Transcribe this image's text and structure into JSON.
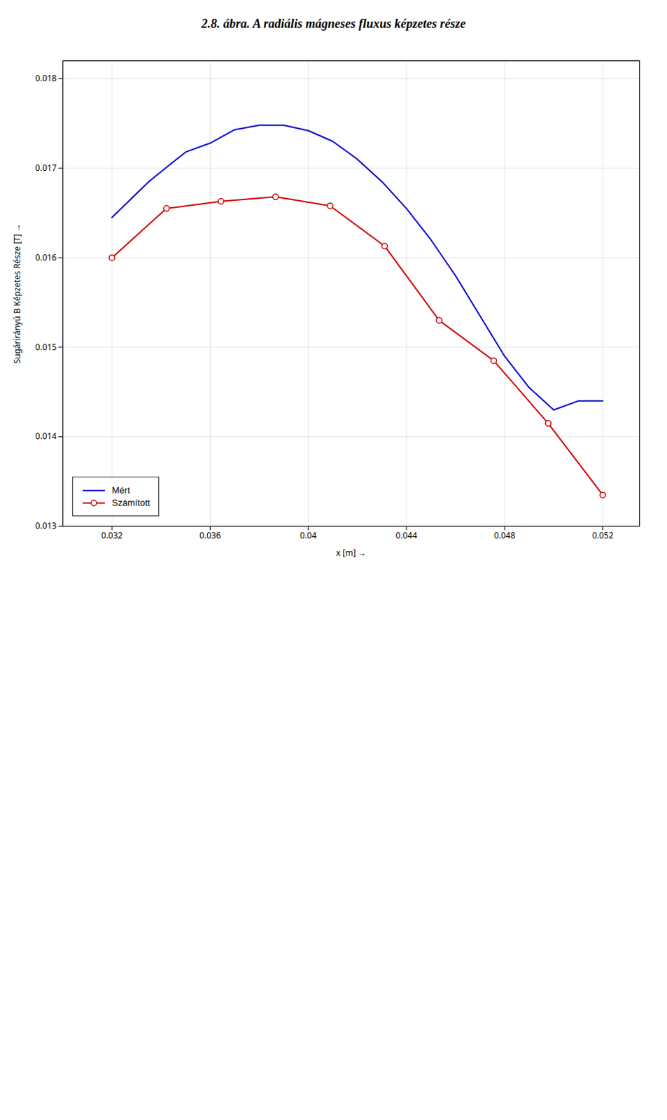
{
  "chart_data": {
    "type": "line",
    "title": "2.8. ábra. A radiális mágneses fluxus képzetes része",
    "xlabel": "x [m]",
    "ylabel": "Sugárirányú B Képzetes Része [T]",
    "xlim": [
      0.03,
      0.0535
    ],
    "ylim": [
      0.013,
      0.0182
    ],
    "xticks": [
      0.032,
      0.036,
      0.04,
      0.044,
      0.048,
      0.052
    ],
    "yticks": [
      0.013,
      0.014,
      0.015,
      0.016,
      0.017,
      0.018
    ],
    "grid": true,
    "legend": "lower left",
    "series": [
      {
        "name": "Mért",
        "color": "#0000cc",
        "line_style": "solid",
        "x": [
          0.032,
          0.0335,
          0.035,
          0.036,
          0.037,
          0.038,
          0.039,
          0.04,
          0.041,
          0.042,
          0.043,
          0.044,
          0.045,
          0.046,
          0.047,
          0.048,
          0.049,
          0.05,
          0.051,
          0.052
        ],
        "values": [
          0.01645,
          0.01685,
          0.01718,
          0.01728,
          0.01743,
          0.01748,
          0.01748,
          0.01742,
          0.0173,
          0.0171,
          0.01685,
          0.01655,
          0.0162,
          0.0158,
          0.01535,
          0.0149,
          0.01455,
          0.0143,
          0.0144,
          0.0144
        ]
      },
      {
        "name": "Számított",
        "color": "#cc0000",
        "line_style": "solid",
        "marker": "circle",
        "x": [
          0.032,
          0.034222,
          0.036444,
          0.038667,
          0.040889,
          0.043111,
          0.045333,
          0.047556,
          0.049778,
          0.052
        ],
        "values": [
          0.016,
          0.01655,
          0.01663,
          0.01668,
          0.01658,
          0.01613,
          0.0153,
          0.01485,
          0.01415,
          0.01335
        ]
      }
    ]
  }
}
